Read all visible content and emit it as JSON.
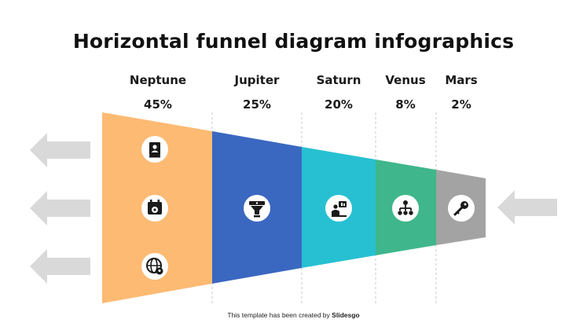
{
  "title": "Horizontal funnel diagram infographics",
  "colors": {
    "neptune": "#FDBA73",
    "jupiter": "#3A68C0",
    "saturn": "#27C0D2",
    "venus": "#3FB68B",
    "mars": "#A3A3A3",
    "arrow": "#D9D9D9",
    "divider": "#C8C8C8"
  },
  "stages": [
    {
      "name": "Neptune",
      "percent": "45%",
      "icons": [
        "contact-book-icon",
        "calendar-money-icon",
        "globe-location-icon"
      ]
    },
    {
      "name": "Jupiter",
      "percent": "25%",
      "icons": [
        "funnel-icon"
      ]
    },
    {
      "name": "Saturn",
      "percent": "20%",
      "icons": [
        "presentation-icon"
      ]
    },
    {
      "name": "Venus",
      "percent": "8%",
      "icons": [
        "hierarchy-icon"
      ]
    },
    {
      "name": "Mars",
      "percent": "2%",
      "icons": [
        "key-icon"
      ]
    }
  ],
  "footer": {
    "prefix": "This template has been created by",
    "brand": "Slidesgo"
  }
}
